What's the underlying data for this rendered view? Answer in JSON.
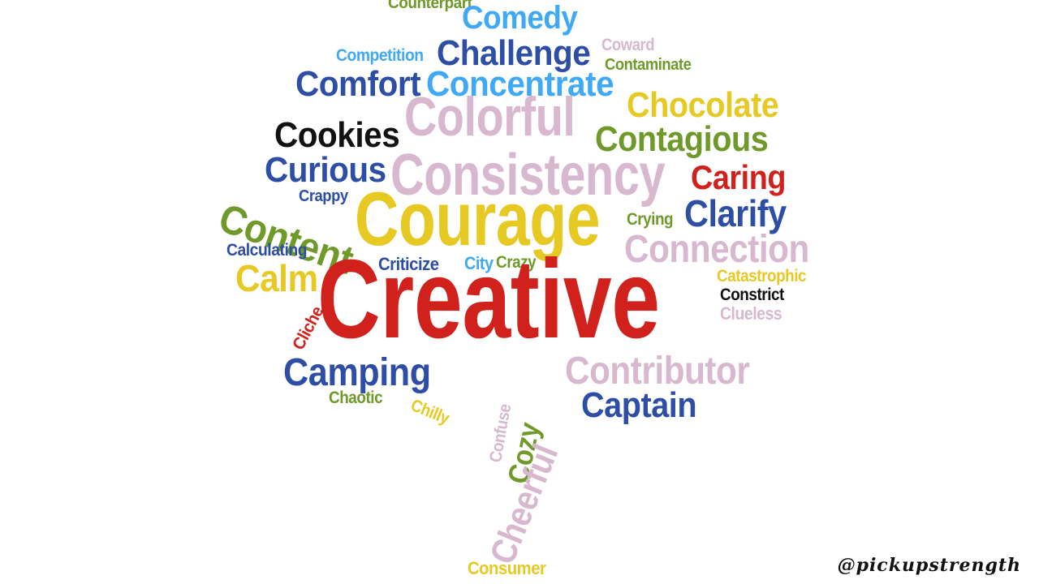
{
  "palette": {
    "red": "#d0211d",
    "yellow": "#e7c924",
    "pink": "#d8b8cf",
    "blue": "#2e4ea6",
    "light_blue": "#3fa9f5",
    "green": "#6f9a2a",
    "black": "#111111"
  },
  "words": [
    {
      "text": "Counterpart",
      "color": "green"
    },
    {
      "text": "Comedy",
      "color": "light_blue"
    },
    {
      "text": "Challenge",
      "color": "blue"
    },
    {
      "text": "Competition",
      "color": "light_blue"
    },
    {
      "text": "Coward",
      "color": "pink"
    },
    {
      "text": "Contaminate",
      "color": "green"
    },
    {
      "text": "Comfort",
      "color": "blue"
    },
    {
      "text": "Concentrate",
      "color": "light_blue"
    },
    {
      "text": "Chocolate",
      "color": "yellow"
    },
    {
      "text": "Colorful",
      "color": "pink"
    },
    {
      "text": "Cookies",
      "color": "black"
    },
    {
      "text": "Contagious",
      "color": "green"
    },
    {
      "text": "Curious",
      "color": "blue"
    },
    {
      "text": "Consistency",
      "color": "pink"
    },
    {
      "text": "Caring",
      "color": "red"
    },
    {
      "text": "Crappy",
      "color": "blue"
    },
    {
      "text": "Content",
      "color": "green"
    },
    {
      "text": "Courage",
      "color": "yellow"
    },
    {
      "text": "Crying",
      "color": "green"
    },
    {
      "text": "Clarify",
      "color": "blue"
    },
    {
      "text": "Connection",
      "color": "pink"
    },
    {
      "text": "Calculating",
      "color": "blue"
    },
    {
      "text": "Criticize",
      "color": "blue"
    },
    {
      "text": "City",
      "color": "light_blue"
    },
    {
      "text": "Crazy",
      "color": "green"
    },
    {
      "text": "Calm",
      "color": "yellow"
    },
    {
      "text": "Catastrophic",
      "color": "yellow"
    },
    {
      "text": "Creative",
      "color": "red"
    },
    {
      "text": "Constrict",
      "color": "black"
    },
    {
      "text": "Clueless",
      "color": "pink"
    },
    {
      "text": "Cliche",
      "color": "red"
    },
    {
      "text": "Contributor",
      "color": "pink"
    },
    {
      "text": "Camping",
      "color": "blue"
    },
    {
      "text": "Chaotic",
      "color": "green"
    },
    {
      "text": "Chilly",
      "color": "yellow"
    },
    {
      "text": "Captain",
      "color": "blue"
    },
    {
      "text": "Confuse",
      "color": "pink"
    },
    {
      "text": "Cozy",
      "color": "green"
    },
    {
      "text": "Cheerful",
      "color": "pink"
    },
    {
      "text": "Consumer",
      "color": "yellow"
    }
  ],
  "handle": "@pickupstrength"
}
